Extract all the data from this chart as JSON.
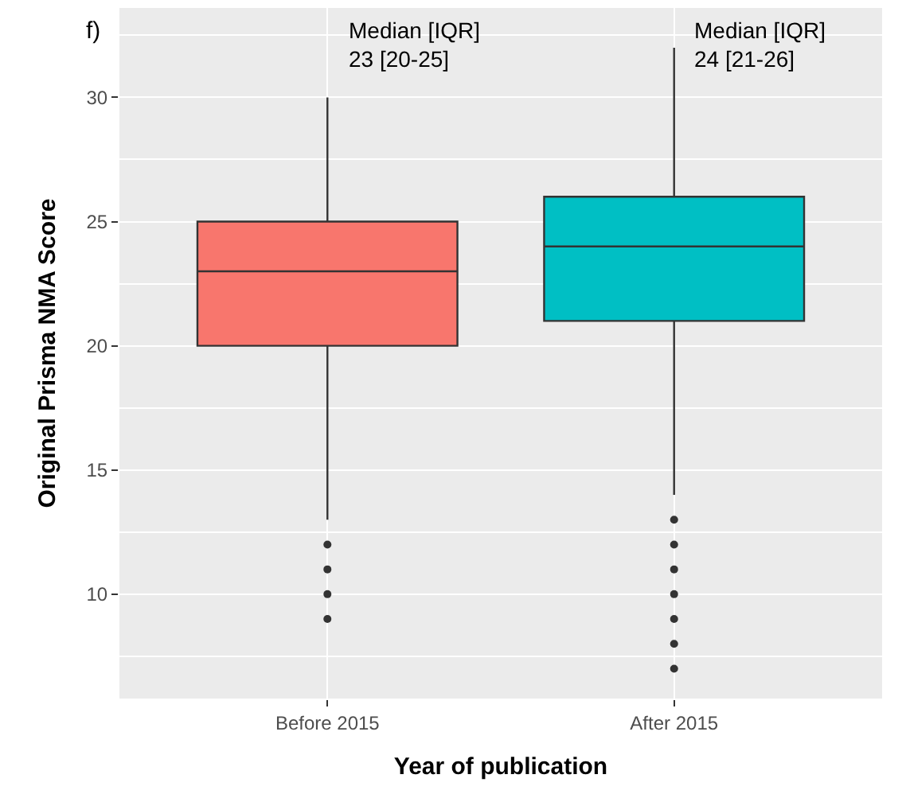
{
  "chart_data": {
    "type": "box",
    "xlabel": "Year of publication",
    "ylabel": "Original Prisma NMA Score",
    "categories": [
      "Before 2015",
      "After 2015"
    ],
    "colors": [
      "#f8766d",
      "#00bfc4"
    ],
    "boxes": [
      {
        "low": 13,
        "q1": 20,
        "median": 23,
        "q3": 25,
        "high": 30,
        "outliers": [
          12,
          11,
          10,
          9
        ]
      },
      {
        "low": 14,
        "q1": 21,
        "median": 24,
        "q3": 26,
        "high": 32,
        "outliers": [
          13,
          12,
          11,
          10,
          9,
          8,
          7
        ]
      }
    ],
    "ylim": [
      5.8,
      33.6
    ],
    "yticks": [
      10,
      15,
      20,
      25,
      30
    ],
    "grid": true,
    "annotations": [
      "f)",
      "Median [IQR]\n23 [20-25]",
      "Median [IQR]\n24 [21-26]"
    ]
  }
}
